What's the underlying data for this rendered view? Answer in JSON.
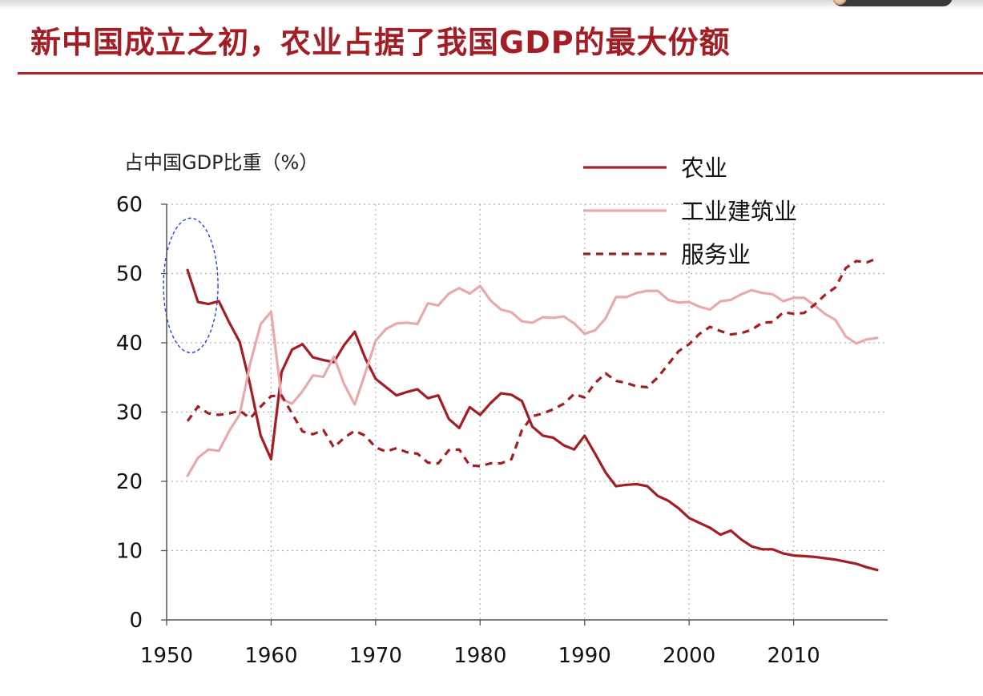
{
  "slide": {
    "title": "新中国成立之初，农业占据了我国GDP的最大份额"
  },
  "chart_data": {
    "type": "line",
    "ylabel": "占中国GDP比重（%）",
    "ylim": [
      0,
      60
    ],
    "xlim": [
      1950,
      2019
    ],
    "yticks": [
      0,
      10,
      20,
      30,
      40,
      50,
      60
    ],
    "xticks": [
      1950,
      1960,
      1970,
      1980,
      1990,
      2000,
      2010
    ],
    "grid": true,
    "legend_position": "top-right",
    "annotation": "dashed blue ellipse highlighting 1952 values",
    "series": [
      {
        "name": "农业",
        "color": "#a31d24",
        "style": "solid",
        "x": [
          1952,
          1953,
          1954,
          1955,
          1956,
          1957,
          1958,
          1959,
          1960,
          1961,
          1962,
          1963,
          1964,
          1965,
          1966,
          1967,
          1968,
          1969,
          1970,
          1971,
          1972,
          1973,
          1974,
          1975,
          1976,
          1977,
          1978,
          1979,
          1980,
          1981,
          1982,
          1983,
          1984,
          1985,
          1986,
          1987,
          1988,
          1989,
          1990,
          1991,
          1992,
          1993,
          1994,
          1995,
          1996,
          1997,
          1998,
          1999,
          2000,
          2001,
          2002,
          2003,
          2004,
          2005,
          2006,
          2007,
          2008,
          2009,
          2010,
          2011,
          2012,
          2013,
          2014,
          2015,
          2016,
          2017,
          2018
        ],
        "values": [
          50.5,
          45.9,
          45.6,
          46.0,
          42.9,
          40.1,
          33.9,
          26.6,
          23.2,
          35.8,
          39.0,
          39.8,
          37.9,
          37.5,
          37.2,
          39.7,
          41.6,
          37.8,
          34.8,
          33.6,
          32.4,
          32.9,
          33.3,
          32.0,
          32.4,
          29.0,
          27.7,
          30.7,
          29.6,
          31.3,
          32.7,
          32.5,
          31.6,
          27.9,
          26.6,
          26.3,
          25.2,
          24.6,
          26.6,
          24.0,
          21.3,
          19.3,
          19.5,
          19.6,
          19.3,
          17.9,
          17.2,
          16.1,
          14.7,
          14.0,
          13.3,
          12.3,
          12.9,
          11.6,
          10.6,
          10.2,
          10.2,
          9.6,
          9.3,
          9.2,
          9.1,
          8.9,
          8.7,
          8.4,
          8.1,
          7.6,
          7.2
        ]
      },
      {
        "name": "工业建筑业",
        "color": "#e8a9aa",
        "style": "solid",
        "x": [
          1952,
          1953,
          1954,
          1955,
          1956,
          1957,
          1958,
          1959,
          1960,
          1961,
          1962,
          1963,
          1964,
          1965,
          1966,
          1967,
          1968,
          1969,
          1970,
          1971,
          1972,
          1973,
          1974,
          1975,
          1976,
          1977,
          1978,
          1979,
          1980,
          1981,
          1982,
          1983,
          1984,
          1985,
          1986,
          1987,
          1988,
          1989,
          1990,
          1991,
          1992,
          1993,
          1994,
          1995,
          1996,
          1997,
          1998,
          1999,
          2000,
          2001,
          2002,
          2003,
          2004,
          2005,
          2006,
          2007,
          2008,
          2009,
          2010,
          2011,
          2012,
          2013,
          2014,
          2015,
          2016,
          2017,
          2018
        ],
        "values": [
          20.8,
          23.4,
          24.6,
          24.4,
          27.3,
          29.7,
          37.0,
          42.7,
          44.5,
          31.9,
          31.2,
          33.0,
          35.3,
          35.1,
          38.0,
          34.0,
          31.1,
          35.6,
          40.3,
          42.0,
          42.8,
          42.9,
          42.7,
          45.7,
          45.4,
          47.1,
          47.9,
          47.1,
          48.2,
          46.1,
          44.8,
          44.4,
          43.1,
          42.9,
          43.7,
          43.6,
          43.8,
          42.8,
          41.3,
          41.8,
          43.5,
          46.6,
          46.6,
          47.2,
          47.5,
          47.5,
          46.2,
          45.8,
          45.9,
          45.2,
          44.8,
          46.0,
          46.2,
          47.0,
          47.6,
          47.2,
          47.0,
          46.0,
          46.5,
          46.5,
          45.4,
          44.2,
          43.3,
          40.9,
          39.9,
          40.5,
          40.7
        ]
      },
      {
        "name": "服务业",
        "color": "#a31d24",
        "style": "dashed",
        "x": [
          1952,
          1953,
          1954,
          1955,
          1956,
          1957,
          1958,
          1959,
          1960,
          1961,
          1962,
          1963,
          1964,
          1965,
          1966,
          1967,
          1968,
          1969,
          1970,
          1971,
          1972,
          1973,
          1974,
          1975,
          1976,
          1977,
          1978,
          1979,
          1980,
          1981,
          1982,
          1983,
          1984,
          1985,
          1986,
          1987,
          1988,
          1989,
          1990,
          1991,
          1992,
          1993,
          1994,
          1995,
          1996,
          1997,
          1998,
          1999,
          2000,
          2001,
          2002,
          2003,
          2004,
          2005,
          2006,
          2007,
          2008,
          2009,
          2010,
          2011,
          2012,
          2013,
          2014,
          2015,
          2016,
          2017,
          2018
        ],
        "values": [
          28.7,
          30.8,
          29.8,
          29.6,
          29.8,
          30.2,
          29.1,
          30.8,
          32.3,
          32.4,
          29.8,
          27.2,
          26.8,
          27.4,
          24.9,
          26.3,
          27.3,
          26.6,
          24.9,
          24.3,
          24.8,
          24.2,
          24.0,
          22.7,
          22.6,
          24.5,
          24.6,
          22.3,
          22.2,
          22.6,
          22.6,
          23.2,
          27.4,
          29.4,
          29.8,
          30.4,
          31.2,
          32.6,
          32.1,
          34.2,
          35.6,
          34.5,
          34.2,
          33.7,
          33.6,
          35.0,
          36.9,
          38.8,
          39.8,
          41.3,
          42.3,
          41.7,
          41.2,
          41.4,
          41.9,
          42.9,
          43.0,
          44.4,
          44.2,
          44.3,
          45.5,
          46.9,
          48.0,
          50.8,
          51.8,
          51.6,
          52.2
        ]
      }
    ]
  }
}
